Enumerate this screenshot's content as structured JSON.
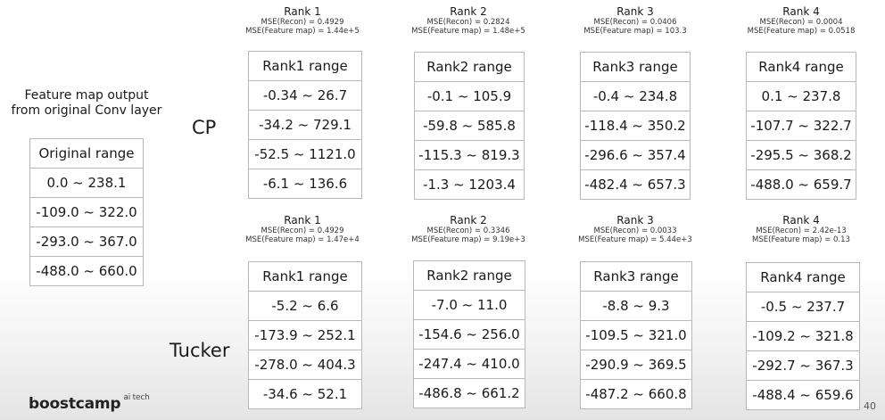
{
  "original": {
    "caption_line1": "Feature map output",
    "caption_line2": "from original Conv layer",
    "table": [
      "Original range",
      "0.0 ~ 238.1",
      "-109.0 ~ 322.0",
      "-293.0 ~ 367.0",
      "-488.0 ~ 660.0"
    ]
  },
  "cp": {
    "label": "CP",
    "ranks": [
      {
        "title": "Rank 1",
        "mse_recon": "MSE(Recon) = 0.4929",
        "mse_fmap": "MSE(Feature map) = 1.44e+5",
        "table": [
          "Rank1 range",
          "-0.34 ~ 26.7",
          "-34.2 ~ 729.1",
          "-52.5 ~ 1121.0",
          "-6.1 ~ 136.6"
        ]
      },
      {
        "title": "Rank 2",
        "mse_recon": "MSE(Recon) = 0.2824",
        "mse_fmap": "MSE(Feature map) = 1.48e+5",
        "table": [
          "Rank2 range",
          "-0.1 ~ 105.9",
          "-59.8 ~ 585.8",
          "-115.3 ~ 819.3",
          "-1.3 ~ 1203.4"
        ]
      },
      {
        "title": "Rank 3",
        "mse_recon": "MSE(Recon) = 0.0406",
        "mse_fmap": "MSE(Feature map) = 103.3",
        "table": [
          "Rank3 range",
          "-0.4 ~ 234.8",
          "-118.4 ~ 350.2",
          "-296.6 ~ 357.4",
          "-482.4 ~ 657.3"
        ]
      },
      {
        "title": "Rank 4",
        "mse_recon": "MSE(Recon) = 0.0004",
        "mse_fmap": "MSE(Feature map) = 0.0518",
        "table": [
          "Rank4 range",
          "0.1 ~ 237.8",
          "-107.7 ~ 322.7",
          "-295.5 ~ 368.2",
          "-488.0 ~ 659.7"
        ]
      }
    ]
  },
  "tucker": {
    "label": "Tucker",
    "ranks": [
      {
        "title": "Rank 1",
        "mse_recon": "MSE(Recon) = 0.4929",
        "mse_fmap": "MSE(Feature map) = 1.47e+4",
        "table": [
          "Rank1 range",
          "-5.2 ~ 6.6",
          "-173.9 ~ 252.1",
          "-278.0 ~ 404.3",
          "-34.6 ~ 52.1"
        ]
      },
      {
        "title": "Rank 2",
        "mse_recon": "MSE(Recon) = 0.3346",
        "mse_fmap": "MSE(Feature map) = 9.19e+3",
        "table": [
          "Rank2 range",
          "-7.0 ~ 11.0",
          "-154.6 ~ 256.0",
          "-247.4 ~ 410.0",
          "-486.8 ~ 661.2"
        ]
      },
      {
        "title": "Rank 3",
        "mse_recon": "MSE(Recon) = 0.0033",
        "mse_fmap": "MSE(Feature map) = 5.44e+3",
        "table": [
          "Rank3 range",
          "-8.8 ~ 9.3",
          "-109.5 ~ 321.0",
          "-290.9 ~ 369.5",
          "-487.2 ~ 660.8"
        ]
      },
      {
        "title": "Rank 4",
        "mse_recon": "MSE(Recon) = 2.42e-13",
        "mse_fmap": "MSE(Feature map) = 0.13",
        "table": [
          "Rank4 range",
          "-0.5 ~ 237.7",
          "-109.2 ~ 321.8",
          "-292.7 ~ 367.3",
          "-488.4 ~ 659.6"
        ]
      }
    ]
  },
  "footer": {
    "logo_text": "boostcamp",
    "logo_sup": "ai tech",
    "page_number": "40"
  }
}
